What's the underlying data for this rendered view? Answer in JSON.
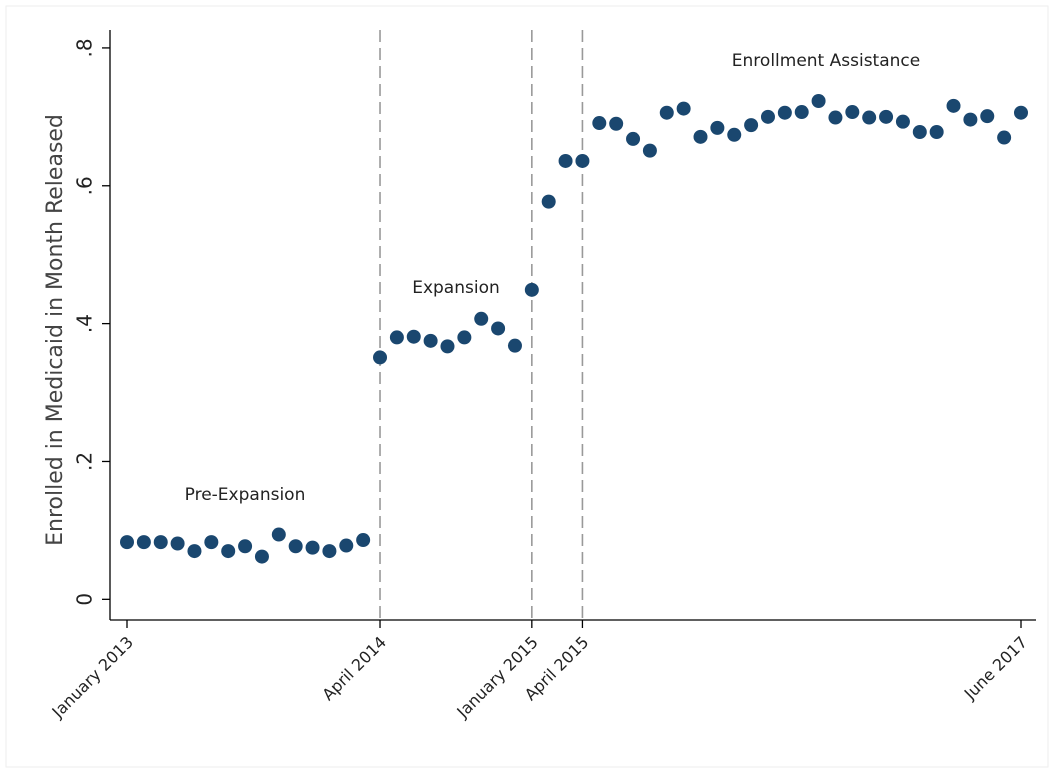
{
  "chart_data": {
    "type": "scatter",
    "y_label": "Enrolled in Medicaid in Month Released",
    "categories": [
      "January 2013",
      null,
      null,
      null,
      null,
      null,
      null,
      null,
      null,
      null,
      null,
      null,
      null,
      null,
      null,
      "April 2014",
      null,
      null,
      null,
      null,
      null,
      null,
      null,
      null,
      "January 2015",
      null,
      null,
      "April 2015",
      null,
      null,
      null,
      null,
      null,
      null,
      null,
      null,
      null,
      null,
      null,
      null,
      null,
      null,
      null,
      null,
      null,
      null,
      null,
      null,
      null,
      null,
      null,
      null,
      null,
      "June 2017"
    ],
    "values": [
      0.083,
      0.083,
      0.083,
      0.081,
      0.07,
      0.083,
      0.07,
      0.077,
      0.062,
      0.094,
      0.077,
      0.075,
      0.07,
      0.078,
      0.086,
      0.351,
      0.38,
      0.381,
      0.375,
      0.367,
      0.38,
      0.407,
      0.393,
      0.368,
      0.449,
      0.577,
      0.636,
      0.636,
      0.691,
      0.69,
      0.668,
      0.651,
      0.706,
      0.712,
      0.671,
      0.684,
      0.674,
      0.688,
      0.7,
      0.706,
      0.707,
      0.723,
      0.699,
      0.707,
      0.699,
      0.7,
      0.693,
      0.678,
      0.678,
      0.716,
      0.696,
      0.701,
      0.67,
      0.706
    ],
    "color": "#1a476f",
    "ylim": [
      -0.03,
      0.826
    ],
    "yticks": [
      0,
      {
        "value": 0.2,
        "label": ".2"
      },
      {
        "value": 0.4,
        "label": ".4"
      },
      {
        "value": 0.6,
        "label": ".6"
      },
      {
        "value": 0.8,
        "label": ".8"
      }
    ],
    "vlines": [
      15,
      24,
      27
    ],
    "annotations": [
      "Pre-Expansion",
      "Expansion",
      "Enrollment Assistance"
    ],
    "grid": false
  }
}
